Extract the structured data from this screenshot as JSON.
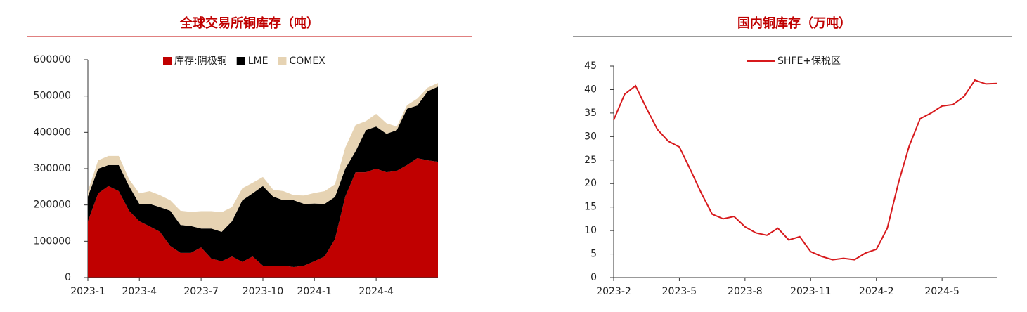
{
  "chart_data": [
    {
      "type": "area",
      "title": "全球交易所铜库存（吨）",
      "categories": [
        "2023-1",
        null,
        null,
        null,
        null,
        "2023-4",
        null,
        null,
        null,
        null,
        null,
        "2023-7",
        null,
        null,
        null,
        null,
        null,
        "2023-10",
        null,
        null,
        null,
        null,
        "2024-1",
        null,
        null,
        null,
        null,
        null,
        "2024-4",
        null,
        null,
        null,
        null,
        null,
        null
      ],
      "series": [
        {
          "name": "库存:阴极铜",
          "color": "#c00000",
          "values": [
            155000,
            232000,
            252000,
            238000,
            184000,
            155000,
            141000,
            126000,
            87000,
            68000,
            68000,
            83000,
            52000,
            45000,
            58000,
            43000,
            58000,
            33000,
            33000,
            33000,
            29000,
            33000,
            45000,
            58000,
            106000,
            223000,
            290000,
            290000,
            300000,
            290000,
            294000,
            310000,
            329000,
            323000,
            319000
          ]
        },
        {
          "name": "LME",
          "color": "#000000",
          "values": [
            68000,
            68000,
            58000,
            72000,
            68000,
            48000,
            62000,
            68000,
            97000,
            77000,
            74000,
            52000,
            83000,
            81000,
            97000,
            170000,
            174000,
            219000,
            190000,
            180000,
            184000,
            170000,
            159000,
            145000,
            116000,
            77000,
            58000,
            116000,
            116000,
            106000,
            112000,
            155000,
            145000,
            190000,
            207000
          ]
        },
        {
          "name": "COMEX",
          "color": "#e6d3b3",
          "values": [
            15000,
            23000,
            25000,
            25000,
            19000,
            29000,
            35000,
            33000,
            29000,
            39000,
            39000,
            48000,
            48000,
            54000,
            39000,
            33000,
            29000,
            25000,
            19000,
            25000,
            14000,
            23000,
            29000,
            35000,
            35000,
            58000,
            72000,
            25000,
            35000,
            29000,
            10000,
            10000,
            19000,
            10000,
            10000
          ]
        }
      ],
      "ylim": [
        0,
        600000
      ],
      "yticks": [
        0,
        100000,
        200000,
        300000,
        400000,
        500000,
        600000
      ]
    },
    {
      "type": "line",
      "title": "国内铜库存（万吨）",
      "categories": [
        "2023-2",
        null,
        null,
        null,
        null,
        null,
        "2023-5",
        null,
        null,
        null,
        null,
        null,
        "2023-8",
        null,
        null,
        null,
        null,
        null,
        "2023-11",
        null,
        null,
        null,
        null,
        null,
        "2024-2",
        null,
        null,
        null,
        null,
        null,
        "2024-5",
        null,
        null,
        null,
        null,
        null
      ],
      "series": [
        {
          "name": "SHFE+保税区",
          "color": "#d7191c",
          "values": [
            33.5,
            39,
            40.8,
            36,
            31.5,
            29,
            27.8,
            23,
            18,
            13.5,
            12.5,
            13,
            10.8,
            9.5,
            9,
            10.5,
            8,
            8.7,
            5.5,
            4.5,
            3.8,
            4.1,
            3.8,
            5.2,
            6,
            10.5,
            20,
            28,
            33.8,
            35,
            36.5,
            36.8,
            38.5,
            42,
            41.2,
            41.3
          ]
        }
      ],
      "ylim": [
        0,
        45
      ],
      "yticks": [
        0,
        5,
        10,
        15,
        20,
        25,
        30,
        35,
        40,
        45
      ]
    }
  ]
}
